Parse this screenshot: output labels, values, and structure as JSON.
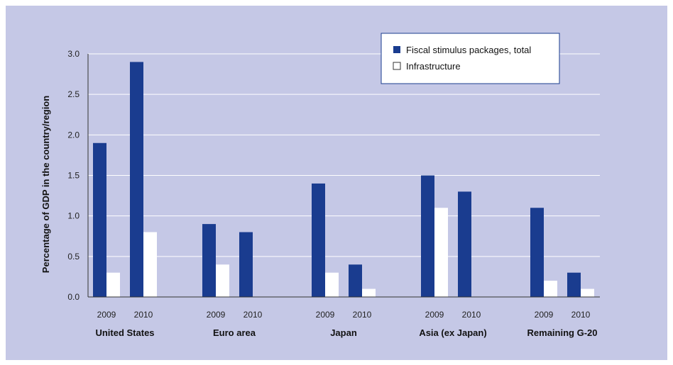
{
  "chart_data": {
    "type": "bar",
    "title": "",
    "ylabel": "Percentage of GDP in the country/region",
    "ylim": [
      0,
      3.0
    ],
    "yticks": [
      "0.0",
      "0.5",
      "1.0",
      "1.5",
      "2.0",
      "2.5",
      "3.0"
    ],
    "grid": true,
    "legend_position": "top-right",
    "groups": [
      {
        "name": "United States",
        "years": [
          "2009",
          "2010"
        ]
      },
      {
        "name": "Euro area",
        "years": [
          "2009",
          "2010"
        ]
      },
      {
        "name": "Japan",
        "years": [
          "2009",
          "2010"
        ]
      },
      {
        "name": "Asia (ex Japan)",
        "years": [
          "2009",
          "2010"
        ]
      },
      {
        "name": "Remaining G-20",
        "years": [
          "2009",
          "2010"
        ]
      }
    ],
    "series": [
      {
        "name": "Fiscal stimulus packages, total",
        "color": "#1a3c8f",
        "values": [
          [
            1.9,
            2.9
          ],
          [
            0.9,
            0.8
          ],
          [
            1.4,
            0.4
          ],
          [
            1.5,
            1.3
          ],
          [
            1.1,
            0.3
          ]
        ]
      },
      {
        "name": "Infrastructure",
        "color": "#ffffff",
        "values": [
          [
            0.3,
            0.8
          ],
          [
            0.4,
            0.0
          ],
          [
            0.3,
            0.1
          ],
          [
            1.1,
            0.0
          ],
          [
            0.2,
            0.1
          ]
        ]
      }
    ],
    "colors": {
      "background": "#c5c8e6",
      "grid": "#ffffff",
      "axis": "#333333"
    }
  }
}
